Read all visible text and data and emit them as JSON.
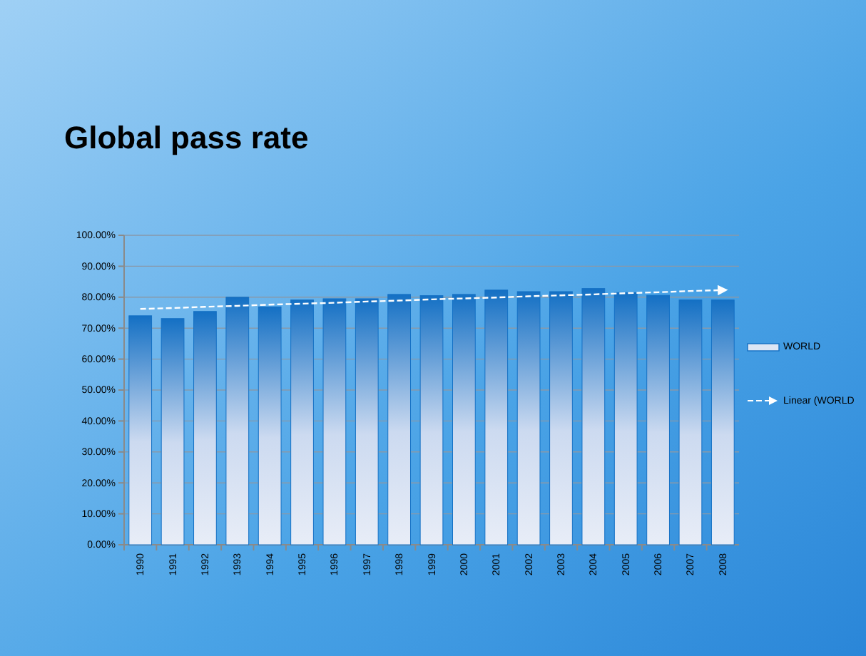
{
  "chart_data": {
    "type": "bar",
    "title": "Global pass rate",
    "categories": [
      "1990",
      "1991",
      "1992",
      "1993",
      "1994",
      "1995",
      "1996",
      "1997",
      "1998",
      "1999",
      "2000",
      "2001",
      "2002",
      "2003",
      "2004",
      "2005",
      "2006",
      "2007",
      "2008"
    ],
    "series": [
      {
        "name": "WORLD",
        "color": "#1470c4",
        "values": [
          74.0,
          73.1,
          75.4,
          80.0,
          76.9,
          79.1,
          79.5,
          79.5,
          80.9,
          80.5,
          80.9,
          82.3,
          81.8,
          81.8,
          82.8,
          81.5,
          80.6,
          79.1,
          79.1
        ]
      },
      {
        "name": "Linear (WORLD",
        "type": "line",
        "color": "#ffffff",
        "line_style": "dashed",
        "values": [
          76.2,
          76.5,
          76.9,
          77.2,
          77.6,
          77.9,
          78.2,
          78.6,
          78.9,
          79.3,
          79.6,
          79.9,
          80.3,
          80.6,
          80.9,
          81.3,
          81.6,
          82.0,
          82.3
        ]
      }
    ],
    "ylim": [
      0,
      100
    ],
    "yticks": [
      {
        "value": 0,
        "label": "0.00%"
      },
      {
        "value": 10,
        "label": "10.00%"
      },
      {
        "value": 20,
        "label": "20.00%"
      },
      {
        "value": 30,
        "label": "30.00%"
      },
      {
        "value": 40,
        "label": "40.00%"
      },
      {
        "value": 50,
        "label": "50.00%"
      },
      {
        "value": 60,
        "label": "60.00%"
      },
      {
        "value": 70,
        "label": "70.00%"
      },
      {
        "value": 80,
        "label": "80.00%"
      },
      {
        "value": 90,
        "label": "90.00%"
      },
      {
        "value": 100,
        "label": "100.00%"
      }
    ],
    "grid": "y",
    "legend": "right"
  }
}
